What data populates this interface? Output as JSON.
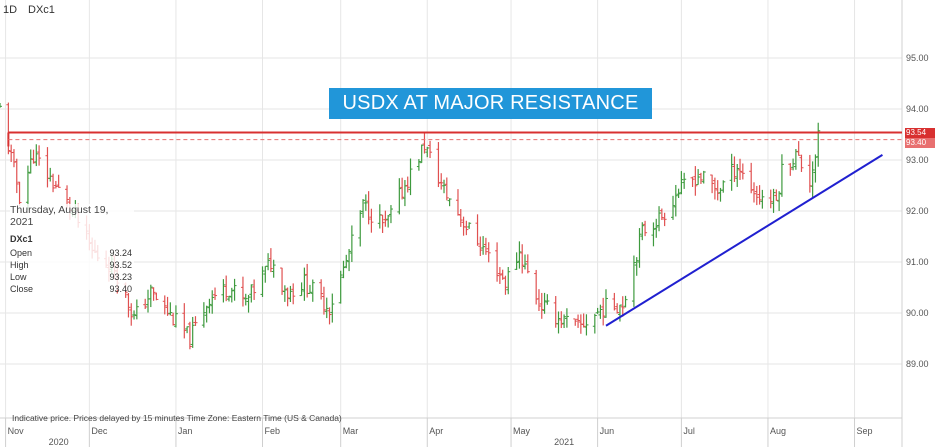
{
  "header": {
    "timeframe": "1D",
    "symbol": "DXc1"
  },
  "annotation": {
    "banner_text": "USDX AT MAJOR  RESISTANCE"
  },
  "tooltip": {
    "date": "Thursday, August 19, 2021",
    "symbol": "DXc1",
    "rows": [
      {
        "label": "Open",
        "value": "93.24"
      },
      {
        "label": "High",
        "value": "93.52"
      },
      {
        "label": "Low",
        "value": "93.23"
      },
      {
        "label": "Close",
        "value": "93.40"
      }
    ]
  },
  "footer": {
    "note": "Indicative price. Prices delayed by 15 minutes    Time Zone: Eastern Time (US & Canada)"
  },
  "price_tags": {
    "resistance": "93.54",
    "last": "93.40"
  },
  "colors": {
    "up": "#3e9a3e",
    "down": "#e05050",
    "resistance": "#d83030",
    "trendline": "#2020d0",
    "banner": "#2196d9"
  },
  "chart_data": {
    "type": "ohlc",
    "y_ticks": [
      "95.00",
      "94.00",
      "93.00",
      "92.00",
      "91.00",
      "90.00",
      "89.00"
    ],
    "y_tick_values": [
      95,
      94,
      93,
      92,
      91,
      90,
      89
    ],
    "ylim": [
      88.5,
      95.5
    ],
    "month_labels": [
      {
        "label": "Nov",
        "date": "2020-11-01"
      },
      {
        "label": "Dec",
        "date": "2020-12-01"
      },
      {
        "label": "Jan",
        "date": "2021-01-01"
      },
      {
        "label": "Feb",
        "date": "2021-02-01"
      },
      {
        "label": "Mar",
        "date": "2021-03-01"
      },
      {
        "label": "Apr",
        "date": "2021-04-01"
      },
      {
        "label": "May",
        "date": "2021-05-01"
      },
      {
        "label": "Jun",
        "date": "2021-06-01"
      },
      {
        "label": "Jul",
        "date": "2021-07-01"
      },
      {
        "label": "Aug",
        "date": "2021-08-01"
      },
      {
        "label": "Sep",
        "date": "2021-09-01"
      }
    ],
    "year_labels": [
      {
        "label": "2020",
        "date": "2020-11-20"
      },
      {
        "label": "2021",
        "date": "2021-05-20"
      }
    ],
    "xlim": [
      "2020-10-30",
      "2021-09-18"
    ],
    "close_path": [
      [
        "2020-10-30",
        94.0
      ],
      [
        "2020-11-04",
        92.8
      ],
      [
        "2020-11-06",
        92.3
      ],
      [
        "2020-11-11",
        93.1
      ],
      [
        "2020-11-20",
        92.4
      ],
      [
        "2020-11-26",
        91.9
      ],
      [
        "2020-12-02",
        91.2
      ],
      [
        "2020-12-10",
        90.9
      ],
      [
        "2020-12-17",
        89.9
      ],
      [
        "2020-12-23",
        90.4
      ],
      [
        "2021-01-06",
        89.5
      ],
      [
        "2021-01-13",
        90.3
      ],
      [
        "2021-01-20",
        90.5
      ],
      [
        "2021-01-26",
        90.2
      ],
      [
        "2021-02-04",
        91.0
      ],
      [
        "2021-02-10",
        90.4
      ],
      [
        "2021-02-16",
        90.6
      ],
      [
        "2021-02-25",
        90.1
      ],
      [
        "2021-03-03",
        91.0
      ],
      [
        "2021-03-09",
        92.1
      ],
      [
        "2021-03-17",
        91.7
      ],
      [
        "2021-03-24",
        92.5
      ],
      [
        "2021-03-31",
        93.3
      ],
      [
        "2021-04-07",
        92.4
      ],
      [
        "2021-04-15",
        91.7
      ],
      [
        "2021-04-22",
        91.2
      ],
      [
        "2021-04-29",
        90.6
      ],
      [
        "2021-05-04",
        91.2
      ],
      [
        "2021-05-11",
        90.2
      ],
      [
        "2021-05-18",
        89.9
      ],
      [
        "2021-05-25",
        89.7
      ],
      [
        "2021-06-03",
        90.1
      ],
      [
        "2021-06-10",
        90.2
      ],
      [
        "2021-06-17",
        91.6
      ],
      [
        "2021-06-24",
        91.9
      ],
      [
        "2021-06-30",
        92.4
      ],
      [
        "2021-07-07",
        92.7
      ],
      [
        "2021-07-14",
        92.4
      ],
      [
        "2021-07-21",
        92.9
      ],
      [
        "2021-07-28",
        92.3
      ],
      [
        "2021-08-04",
        92.2
      ],
      [
        "2021-08-06",
        92.8
      ],
      [
        "2021-08-11",
        93.1
      ],
      [
        "2021-08-16",
        92.6
      ],
      [
        "2021-08-19",
        93.4
      ]
    ],
    "resistance": {
      "value": 93.54,
      "from": "2020-11-02",
      "to": "2021-09-18"
    },
    "last_close_line": {
      "value": 93.4,
      "from": "2020-11-02",
      "to": "2021-09-18"
    },
    "trendline": {
      "start": [
        "2021-06-04",
        89.75
      ],
      "end": [
        "2021-09-11",
        93.1
      ]
    }
  }
}
